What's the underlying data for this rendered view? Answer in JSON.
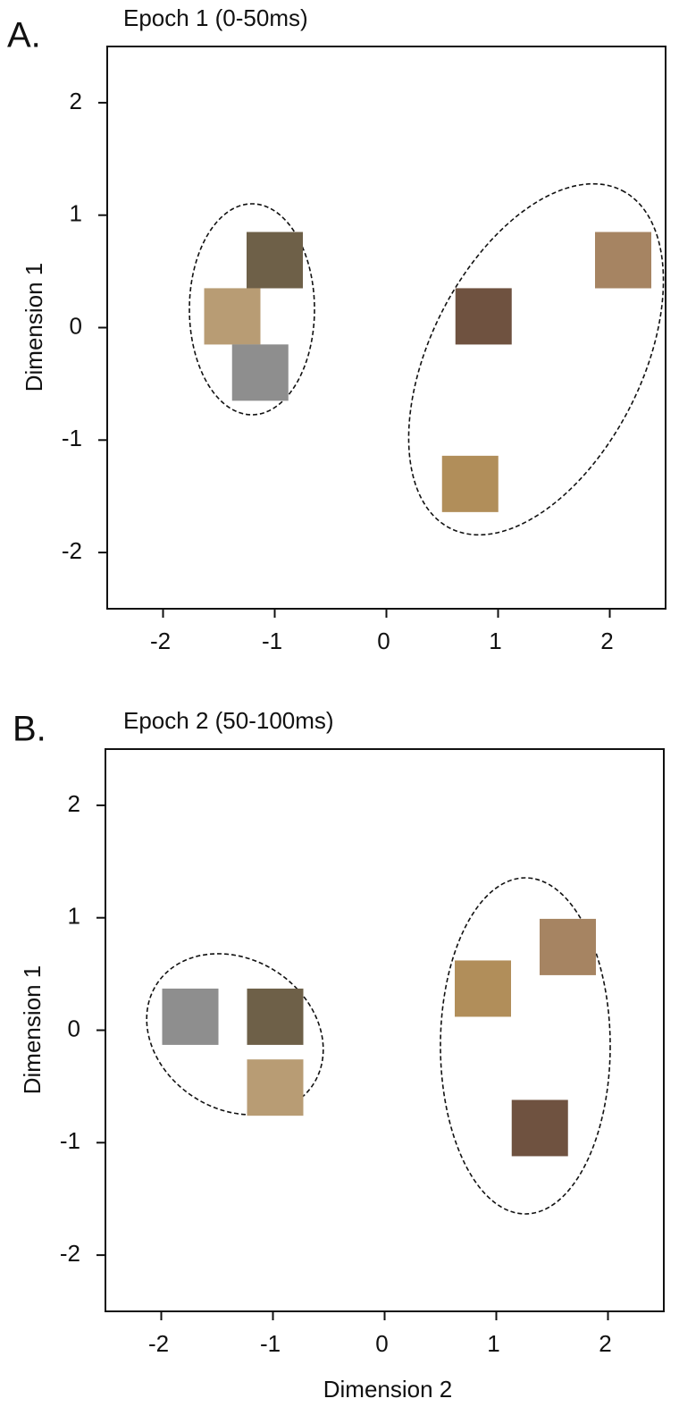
{
  "chart_data": [
    {
      "type": "scatter",
      "panel_label": "A.",
      "title": "Epoch 1 (0-50ms)",
      "y_label": "Dimension 1",
      "x": [
        -1.0,
        -1.38,
        -1.13,
        2.12,
        0.87,
        0.75
      ],
      "values": [
        0.6,
        0.1,
        -0.4,
        0.6,
        0.1,
        -1.39
      ],
      "colors": [
        "#6e6048",
        "#b89c74",
        "#8e8e8e",
        "#a68462",
        "#6f5240",
        "#b18e5a"
      ],
      "xlim": [
        -2.5,
        2.5
      ],
      "ylim": [
        -2.5,
        2.5
      ],
      "xticks": [
        -2,
        -1,
        0,
        1,
        2
      ],
      "yticks": [
        -2,
        -1,
        0,
        1,
        2
      ]
    },
    {
      "type": "scatter",
      "panel_label": "B.",
      "title": "Epoch 2 (50-100ms)",
      "y_label": "Dimension 1",
      "x_label": "Dimension 2",
      "x": [
        -1.74,
        -0.98,
        -0.98,
        1.64,
        0.88,
        1.39
      ],
      "values": [
        0.12,
        0.12,
        -0.51,
        0.74,
        0.37,
        -0.87
      ],
      "colors": [
        "#8e8e8e",
        "#6e6048",
        "#b89c74",
        "#a68462",
        "#b18e5a",
        "#6f5240"
      ],
      "xlim": [
        -2.5,
        2.5
      ],
      "ylim": [
        -2.5,
        2.5
      ],
      "xticks": [
        -2,
        -1,
        0,
        1,
        2
      ],
      "yticks": [
        -2,
        -1,
        0,
        1,
        2
      ]
    }
  ]
}
